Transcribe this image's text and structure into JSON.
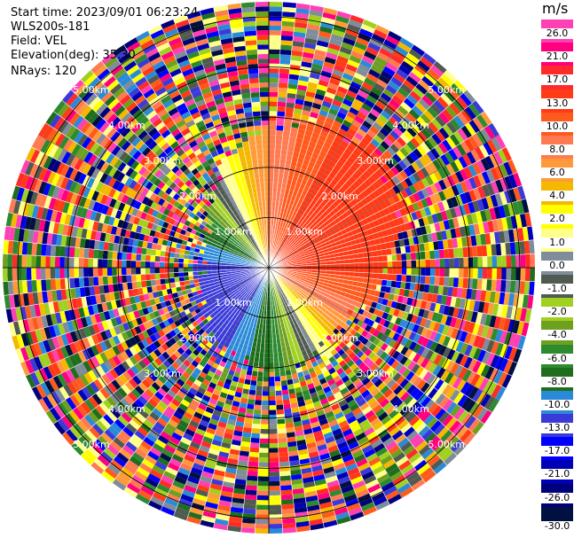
{
  "header": {
    "start_time": "Start time: 2023/09/01 06:23:24",
    "instrument": "WLS200s-181",
    "field": "Field: VEL",
    "elevation": "Elevation(deg): 35.30",
    "nrays": "NRays: 120"
  },
  "colorbar": {
    "unit": "m/s",
    "ticks": [
      "26.0",
      "21.0",
      "17.0",
      "13.0",
      "10.0",
      "8.0",
      "6.0",
      "4.0",
      "2.0",
      "1.0",
      "0.0",
      "-1.0",
      "-2.0",
      "-4.0",
      "-6.0",
      "-8.0",
      "-10.0",
      "-13.0",
      "-17.0",
      "-21.0",
      "-26.0",
      "-30.0"
    ],
    "colors": [
      "#ff3fb4",
      "#ff007e",
      "#ff2a2a",
      "#ff3a16",
      "#ff5a1e",
      "#ff7a50",
      "#ff9a3a",
      "#f5b800",
      "#ffff00",
      "#ffff8c",
      "#7f8c9a",
      "#505a50",
      "#a0d020",
      "#6ea020",
      "#2e8a2e",
      "#1e6e1e",
      "#2b8ad8",
      "#3a3ad8",
      "#0000ff",
      "#0000b4",
      "#00007a",
      "#001040"
    ]
  },
  "chart_data": {
    "type": "ppi-scan",
    "field": "VEL",
    "unit": "m/s",
    "range_rings_km": [
      1.0,
      2.0,
      3.0,
      4.0,
      5.0
    ],
    "ring_labels": [
      "1.00km",
      "2.00km",
      "3.00km",
      "4.00km",
      "5.00km"
    ],
    "max_range_km": 5.3,
    "nrays": 120,
    "grid": true,
    "colorbar_placement": "right"
  }
}
